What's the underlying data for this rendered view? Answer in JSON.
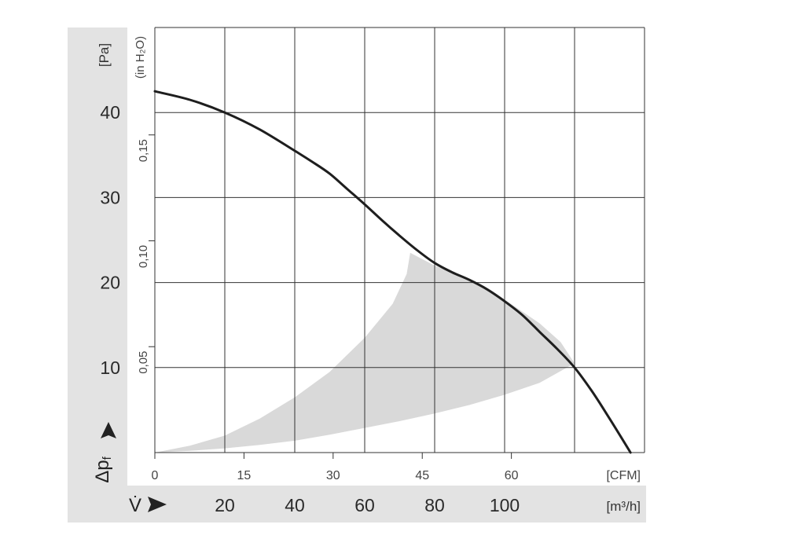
{
  "chart_data": {
    "type": "line",
    "title": "",
    "y_axis": {
      "symbol": "Δp",
      "symbol_subscript": "f",
      "unit": "[Pa]",
      "ticks": [
        "10",
        "20",
        "30",
        "40"
      ],
      "range": [
        0,
        50
      ],
      "secondary_unit": "(in H₂O)",
      "secondary_ticks": [
        "0,05",
        "0,10",
        "0,15"
      ]
    },
    "x_axis": {
      "symbol": "V̇",
      "unit": "[m³/h]",
      "ticks": [
        "20",
        "40",
        "60",
        "80",
        "100"
      ],
      "range": [
        0,
        140
      ],
      "secondary_unit": "[CFM]",
      "secondary_ticks": [
        "0",
        "15",
        "30",
        "45",
        "60"
      ]
    },
    "grid": true,
    "series": [
      {
        "x": [
          0,
          10,
          20,
          30,
          40,
          45,
          50,
          55,
          60,
          65,
          70,
          75,
          80,
          85,
          90,
          95,
          100,
          105,
          110,
          115,
          120,
          125,
          130,
          136
        ],
        "y": [
          42.5,
          41.5,
          40,
          38,
          35.5,
          34.2,
          32.8,
          31,
          29.2,
          27.3,
          25.5,
          23.8,
          22.3,
          21.2,
          20.3,
          19.2,
          17.8,
          16.2,
          14.2,
          12.2,
          10,
          7.2,
          4,
          0
        ]
      }
    ],
    "operating_area": {
      "color": "#d9d9d9",
      "boundary": [
        [
          0,
          0
        ],
        [
          10,
          0.8
        ],
        [
          20,
          2
        ],
        [
          30,
          4
        ],
        [
          40,
          6.5
        ],
        [
          50,
          9.5
        ],
        [
          60,
          13.5
        ],
        [
          68,
          17.5
        ],
        [
          72,
          21
        ],
        [
          73,
          23.5
        ],
        [
          80,
          22
        ],
        [
          90,
          20.3
        ],
        [
          100,
          18
        ],
        [
          110,
          15.2
        ],
        [
          116,
          13
        ],
        [
          120,
          10.5
        ],
        [
          110,
          8.2
        ],
        [
          100,
          6.8
        ],
        [
          90,
          5.6
        ],
        [
          80,
          4.6
        ],
        [
          70,
          3.7
        ],
        [
          60,
          2.9
        ],
        [
          50,
          2.1
        ],
        [
          40,
          1.4
        ],
        [
          30,
          0.9
        ],
        [
          20,
          0.5
        ],
        [
          10,
          0.2
        ],
        [
          0,
          0
        ]
      ]
    },
    "colors": {
      "curve": "#1e1e1e",
      "panel": "#e3e3e3",
      "grid": "#333333"
    }
  }
}
